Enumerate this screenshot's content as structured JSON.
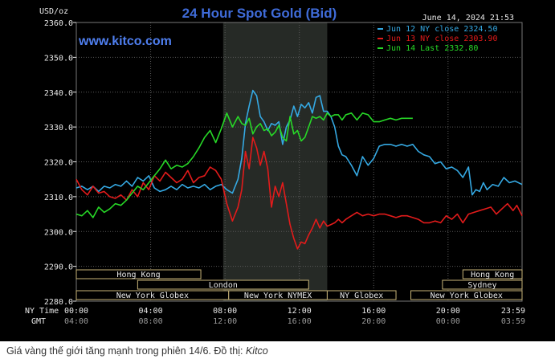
{
  "chart_data": {
    "type": "line",
    "title": "24 Hour Spot Gold (Bid)",
    "ylabel": "USD/oz",
    "website": "www.kitco.com",
    "timestamp": "June 14, 2024 21:53",
    "ylim": [
      2280,
      2360
    ],
    "yticks": [
      "2360.0",
      "2350.0",
      "2340.0",
      "2330.0",
      "2320.0",
      "2310.0",
      "2300.0",
      "2290.0",
      "2280.0"
    ],
    "x_hours": [
      0,
      4,
      8,
      12,
      16,
      20,
      23.983
    ],
    "xlabels_ny_title": "NY Time",
    "xlabels_ny": [
      "00:00",
      "04:00",
      "08:00",
      "12:00",
      "16:00",
      "20:00",
      "23:59"
    ],
    "xlabels_gmt_title": "GMT",
    "xlabels_gmt": [
      "04:00",
      "08:00",
      "12:00",
      "16:00",
      "20:00",
      "00:00",
      "03:59"
    ],
    "grid": true,
    "legend_position": "top-right",
    "colors": {
      "background": "#000000",
      "plot_bg": "#000000",
      "grid": "#5a5a5a",
      "highlight_band": "#262a26",
      "title": "#3f6bd8",
      "website": "#4f7ff0",
      "axis_text": "#e8e8e8",
      "axis_text_dim": "#9a9a9a",
      "session_line": "#c8b478"
    },
    "highlight_band_hours": [
      7.9,
      13.5
    ],
    "series": [
      {
        "name": "Jun 12 NY close 2324.50",
        "color": "#35a9e3",
        "x": [
          0,
          0.3,
          0.6,
          0.9,
          1.2,
          1.5,
          1.8,
          2.1,
          2.4,
          2.7,
          3.0,
          3.3,
          3.6,
          3.9,
          4.2,
          4.5,
          4.8,
          5.1,
          5.4,
          5.7,
          6.0,
          6.3,
          6.6,
          6.9,
          7.2,
          7.5,
          7.8,
          8.1,
          8.4,
          8.7,
          8.9,
          9.1,
          9.3,
          9.5,
          9.7,
          9.9,
          10.1,
          10.3,
          10.5,
          10.7,
          10.9,
          11.1,
          11.3,
          11.5,
          11.7,
          11.9,
          12.1,
          12.3,
          12.5,
          12.7,
          12.9,
          13.1,
          13.3,
          13.5,
          13.7,
          13.9,
          14.1,
          14.3,
          14.5,
          14.8,
          15.1,
          15.4,
          15.7,
          16.0,
          16.3,
          16.6,
          16.9,
          17.2,
          17.5,
          17.8,
          18.1,
          18.4,
          18.7,
          19.0,
          19.3,
          19.6,
          19.9,
          20.2,
          20.5,
          20.8,
          21.1,
          21.3,
          21.5,
          21.7,
          21.9,
          22.1,
          22.4,
          22.7,
          23.0,
          23.3,
          23.6,
          23.983
        ],
        "values": [
          2312.5,
          2313.0,
          2312.0,
          2313.0,
          2311.5,
          2313.0,
          2312.5,
          2313.5,
          2313.0,
          2314.5,
          2313.0,
          2315.5,
          2314.5,
          2316.0,
          2312.5,
          2311.5,
          2312.0,
          2313.0,
          2312.0,
          2313.5,
          2312.5,
          2313.0,
          2312.5,
          2313.5,
          2312.0,
          2313.0,
          2313.5,
          2312.0,
          2311.0,
          2315.0,
          2321.0,
          2331.0,
          2336.0,
          2340.5,
          2339.0,
          2333.0,
          2331.5,
          2329.0,
          2331.0,
          2330.5,
          2331.5,
          2325.0,
          2330.0,
          2332.0,
          2336.0,
          2333.0,
          2336.5,
          2335.5,
          2337.0,
          2334.0,
          2338.5,
          2339.0,
          2334.5,
          2334.5,
          2333.0,
          2330.0,
          2324.5,
          2322.0,
          2321.5,
          2319.0,
          2316.0,
          2321.5,
          2319.0,
          2321.0,
          2324.5,
          2325.0,
          2325.0,
          2324.5,
          2325.0,
          2324.5,
          2325.0,
          2323.0,
          2322.0,
          2321.5,
          2319.5,
          2320.0,
          2318.0,
          2318.5,
          2317.5,
          2315.5,
          2318.5,
          2310.5,
          2312.0,
          2311.5,
          2314.0,
          2312.0,
          2313.5,
          2313.0,
          2315.5,
          2314.0,
          2314.5,
          2313.5
        ]
      },
      {
        "name": "Jun 13 NY close 2303.90",
        "color": "#e21b1b",
        "x": [
          0,
          0.3,
          0.6,
          0.9,
          1.2,
          1.5,
          1.8,
          2.1,
          2.4,
          2.7,
          3.0,
          3.3,
          3.6,
          3.9,
          4.2,
          4.5,
          4.8,
          5.1,
          5.4,
          5.7,
          6.0,
          6.3,
          6.6,
          6.9,
          7.2,
          7.5,
          7.8,
          8.1,
          8.4,
          8.7,
          8.9,
          9.1,
          9.3,
          9.5,
          9.7,
          9.9,
          10.1,
          10.3,
          10.5,
          10.7,
          10.9,
          11.1,
          11.3,
          11.5,
          11.7,
          11.9,
          12.1,
          12.3,
          12.5,
          12.7,
          12.9,
          13.1,
          13.3,
          13.5,
          13.7,
          13.9,
          14.1,
          14.3,
          14.5,
          14.8,
          15.1,
          15.4,
          15.7,
          16.0,
          16.3,
          16.6,
          16.9,
          17.2,
          17.5,
          17.8,
          18.1,
          18.4,
          18.7,
          19.0,
          19.3,
          19.6,
          19.9,
          20.2,
          20.5,
          20.8,
          21.1,
          21.4,
          21.7,
          22.0,
          22.3,
          22.6,
          22.9,
          23.2,
          23.5,
          23.7,
          23.983
        ],
        "values": [
          2315.0,
          2312.0,
          2310.5,
          2313.0,
          2311.0,
          2311.5,
          2310.0,
          2309.5,
          2310.5,
          2309.0,
          2312.0,
          2310.0,
          2314.0,
          2312.0,
          2316.0,
          2314.5,
          2317.0,
          2315.5,
          2314.0,
          2315.0,
          2317.5,
          2314.0,
          2315.5,
          2316.0,
          2318.5,
          2317.5,
          2315.0,
          2308.0,
          2303.0,
          2307.0,
          2312.0,
          2323.0,
          2318.0,
          2327.0,
          2324.0,
          2319.0,
          2323.0,
          2318.0,
          2307.0,
          2313.0,
          2310.0,
          2314.0,
          2308.0,
          2302.0,
          2298.0,
          2295.0,
          2297.0,
          2296.5,
          2299.0,
          2301.0,
          2303.5,
          2301.0,
          2303.0,
          2301.5,
          2302.0,
          2302.5,
          2303.5,
          2302.5,
          2303.5,
          2304.5,
          2305.5,
          2304.5,
          2305.0,
          2304.5,
          2305.0,
          2305.0,
          2304.5,
          2304.0,
          2304.5,
          2304.5,
          2304.0,
          2303.5,
          2302.5,
          2302.5,
          2303.0,
          2302.5,
          2304.5,
          2303.5,
          2305.0,
          2302.5,
          2305.0,
          2305.5,
          2306.0,
          2306.5,
          2307.0,
          2305.0,
          2306.5,
          2308.0,
          2306.0,
          2307.5,
          2304.5
        ]
      },
      {
        "name": "Jun 14 Last 2332.80",
        "color": "#27d827",
        "x": [
          0,
          0.3,
          0.6,
          0.9,
          1.2,
          1.5,
          1.8,
          2.1,
          2.4,
          2.7,
          3.0,
          3.3,
          3.6,
          3.9,
          4.2,
          4.5,
          4.8,
          5.1,
          5.4,
          5.7,
          6.0,
          6.3,
          6.6,
          6.9,
          7.2,
          7.5,
          7.8,
          8.1,
          8.4,
          8.7,
          8.9,
          9.1,
          9.3,
          9.5,
          9.7,
          9.9,
          10.1,
          10.3,
          10.5,
          10.7,
          10.9,
          11.1,
          11.3,
          11.5,
          11.7,
          11.9,
          12.1,
          12.3,
          12.5,
          12.7,
          12.9,
          13.1,
          13.3,
          13.5,
          13.7,
          13.9,
          14.1,
          14.3,
          14.5,
          14.8,
          15.1,
          15.4,
          15.7,
          16.0,
          16.3,
          16.6,
          16.9,
          17.2,
          17.5,
          17.8,
          18.1
        ],
        "values": [
          2305.0,
          2304.5,
          2306.0,
          2304.0,
          2307.0,
          2305.5,
          2306.5,
          2308.0,
          2307.5,
          2309.0,
          2311.0,
          2313.0,
          2312.0,
          2314.0,
          2316.0,
          2318.0,
          2320.5,
          2318.0,
          2319.0,
          2318.5,
          2319.5,
          2321.5,
          2324.0,
          2327.0,
          2329.0,
          2325.5,
          2329.5,
          2334.0,
          2330.0,
          2333.0,
          2331.0,
          2330.5,
          2332.5,
          2328.0,
          2330.0,
          2331.0,
          2329.0,
          2329.5,
          2327.5,
          2328.5,
          2330.5,
          2327.0,
          2326.0,
          2333.0,
          2328.0,
          2329.0,
          2326.0,
          2327.0,
          2330.0,
          2333.0,
          2332.5,
          2333.0,
          2332.0,
          2334.0,
          2333.0,
          2333.5,
          2333.5,
          2332.0,
          2333.5,
          2334.0,
          2332.0,
          2334.0,
          2333.5,
          2331.5,
          2331.5,
          2332.0,
          2332.5,
          2332.0,
          2332.5,
          2332.5,
          2332.5
        ]
      }
    ],
    "sessions": [
      {
        "label": "Hong Kong",
        "start": 0,
        "end": 6.7
      },
      {
        "label": "London",
        "start": 3.3,
        "end": 12.5
      },
      {
        "label": "New York Globex",
        "start": 0,
        "end": 8.2
      },
      {
        "label": "New York NYMEX",
        "start": 8.2,
        "end": 13.5
      },
      {
        "label": "NY Globex",
        "start": 13.5,
        "end": 17.2
      },
      {
        "label": "Hong Kong",
        "start": 20.8,
        "end": 23.983
      },
      {
        "label": "Sydney",
        "start": 19.7,
        "end": 23.983
      },
      {
        "label": "New York Globex",
        "start": 18.0,
        "end": 23.983
      }
    ]
  },
  "caption": {
    "text": "Giá vàng thế giới tăng mạnh trong phiên 14/6. Đồ thị: ",
    "source": "Kitco"
  }
}
